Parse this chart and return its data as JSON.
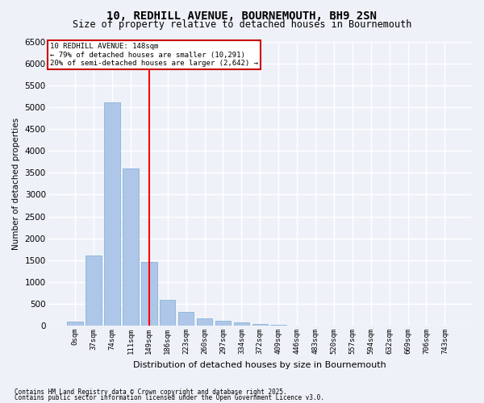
{
  "title_line1": "10, REDHILL AVENUE, BOURNEMOUTH, BH9 2SN",
  "title_line2": "Size of property relative to detached houses in Bournemouth",
  "xlabel": "Distribution of detached houses by size in Bournemouth",
  "ylabel": "Number of detached properties",
  "categories": [
    "0sqm",
    "37sqm",
    "74sqm",
    "111sqm",
    "149sqm",
    "186sqm",
    "223sqm",
    "260sqm",
    "297sqm",
    "334sqm",
    "372sqm",
    "409sqm",
    "446sqm",
    "483sqm",
    "520sqm",
    "557sqm",
    "594sqm",
    "632sqm",
    "669sqm",
    "706sqm",
    "743sqm"
  ],
  "values": [
    100,
    1600,
    5100,
    3600,
    1450,
    600,
    320,
    165,
    120,
    75,
    40,
    25,
    10,
    2,
    1,
    0,
    0,
    0,
    0,
    0,
    0
  ],
  "bar_color": "#aec6e8",
  "bar_edge_color": "#7aadd4",
  "redline_index": 4,
  "ylim": [
    0,
    6500
  ],
  "yticks": [
    0,
    500,
    1000,
    1500,
    2000,
    2500,
    3000,
    3500,
    4000,
    4500,
    5000,
    5500,
    6000,
    6500
  ],
  "annotation_title": "10 REDHILL AVENUE: 148sqm",
  "annotation_line1": "← 79% of detached houses are smaller (10,291)",
  "annotation_line2": "20% of semi-detached houses are larger (2,642) →",
  "annotation_box_color": "#ffffff",
  "annotation_box_edge": "#cc0000",
  "footnote1": "Contains HM Land Registry data © Crown copyright and database right 2025.",
  "footnote2": "Contains public sector information licensed under the Open Government Licence v3.0.",
  "bg_color": "#eef2f8",
  "plot_bg_color": "#eef2f8",
  "grid_color": "#ffffff",
  "title1_fontsize": 10,
  "title2_fontsize": 8.5
}
